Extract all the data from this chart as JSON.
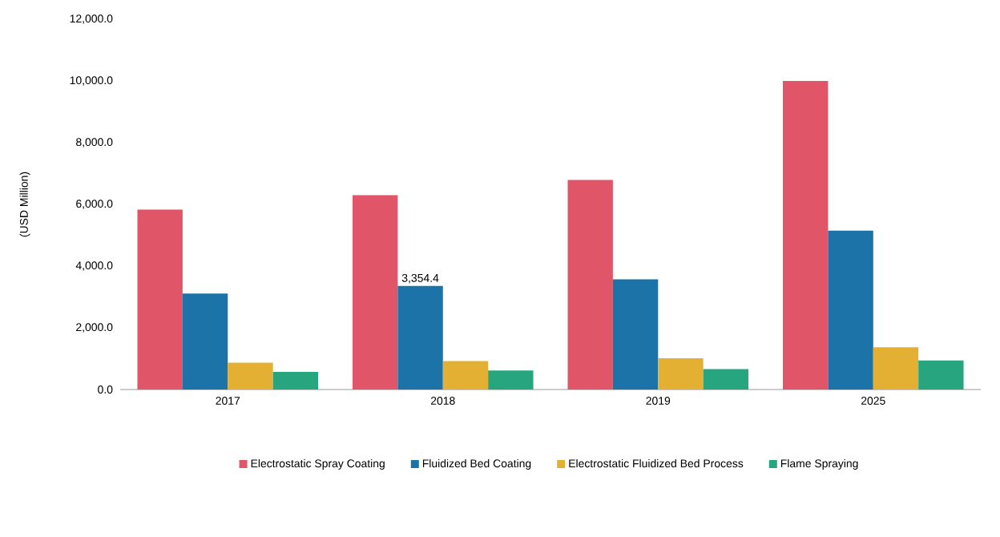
{
  "chart_data": {
    "type": "bar",
    "ylabel": "(USD Million)",
    "categories": [
      "2017",
      "2018",
      "2019",
      "2025"
    ],
    "series": [
      {
        "name": "Electrostatic Spray Coating",
        "color": "#e05567",
        "values": [
          5830,
          6300,
          6790,
          10000
        ]
      },
      {
        "name": "Fluidized Bed Coating",
        "color": "#1c73a8",
        "values": [
          3110,
          3354.4,
          3570,
          5150
        ],
        "value_labels": [
          null,
          "3,354.4",
          null,
          null
        ]
      },
      {
        "name": "Electrostatic Fluidized Bed Process",
        "color": "#e3b034",
        "values": [
          870,
          920,
          1010,
          1370
        ]
      },
      {
        "name": "Flame Spraying",
        "color": "#27a57f",
        "values": [
          570,
          620,
          660,
          940
        ]
      }
    ],
    "ylim": [
      0,
      12000
    ],
    "yticks": [
      {
        "value": 0,
        "label": "0.0"
      },
      {
        "value": 2000,
        "label": "2,000.0"
      },
      {
        "value": 4000,
        "label": "4,000.0"
      },
      {
        "value": 6000,
        "label": "6,000.0"
      },
      {
        "value": 8000,
        "label": "8,000.0"
      },
      {
        "value": 10000,
        "label": "10,000.0"
      },
      {
        "value": 12000,
        "label": "12,000.0"
      }
    ],
    "legend": "bottom"
  }
}
